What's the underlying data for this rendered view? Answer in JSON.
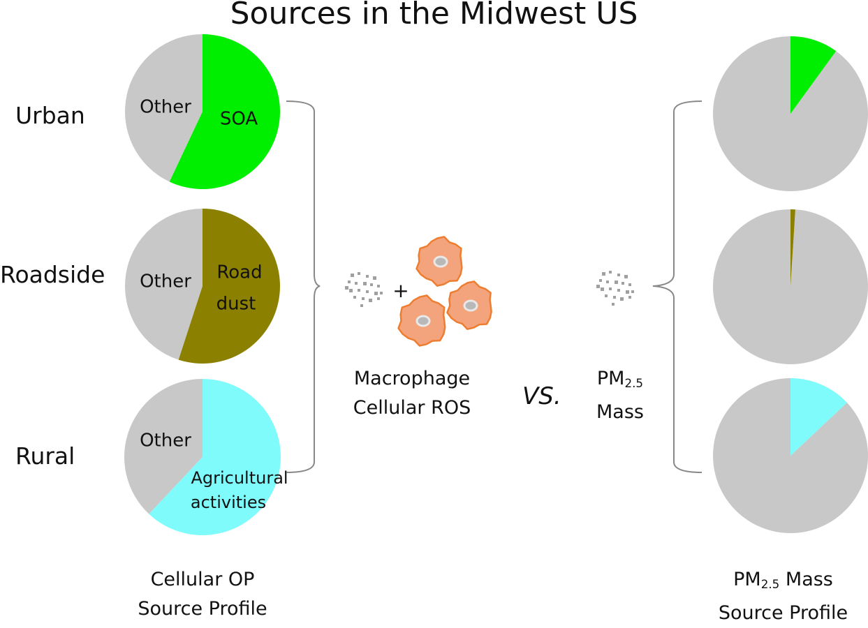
{
  "title": "Sources in the Midwest US",
  "rows": [
    {
      "label": "Urban"
    },
    {
      "label": "Roadside"
    },
    {
      "label": "Rural"
    }
  ],
  "cellular_op": {
    "caption_line1": "Cellular OP",
    "caption_line2": "Source Profile",
    "other_label": "Other",
    "source_labels": [
      [
        "SOA"
      ],
      [
        "Road",
        "dust"
      ],
      [
        "Agricultural",
        "activities"
      ]
    ]
  },
  "middle": {
    "macrophage_line1": "Macrophage",
    "macrophage_line2": "Cellular ROS",
    "plus": "+",
    "vs": "VS.",
    "pm_line1_main": "PM",
    "pm_line1_sub": "2.5",
    "pm_line2": "Mass"
  },
  "pm_mass": {
    "caption_line1_main": "PM",
    "caption_line1_sub": "2.5",
    "caption_line1_rest": " Mass",
    "caption_line2": "Source Profile"
  },
  "chart_data": [
    {
      "type": "pie",
      "title": "Cellular OP Source Profile",
      "series": [
        {
          "category": "Urban",
          "slices": [
            {
              "label": "SOA",
              "value": 0.57,
              "color": "#00ee00"
            },
            {
              "label": "Other",
              "value": 0.43,
              "color": "#c8c8c8"
            }
          ]
        },
        {
          "category": "Roadside",
          "slices": [
            {
              "label": "Road dust",
              "value": 0.55,
              "color": "#8b8000"
            },
            {
              "label": "Other",
              "value": 0.45,
              "color": "#c8c8c8"
            }
          ]
        },
        {
          "category": "Rural",
          "slices": [
            {
              "label": "Agricultural activities",
              "value": 0.62,
              "color": "#7ffbfb"
            },
            {
              "label": "Other",
              "value": 0.38,
              "color": "#c8c8c8"
            }
          ]
        }
      ]
    },
    {
      "type": "pie",
      "title": "PM2.5 Mass Source Profile",
      "series": [
        {
          "category": "Urban",
          "slices": [
            {
              "label": "SOA",
              "value": 0.1,
              "color": "#00ee00"
            },
            {
              "label": "Other",
              "value": 0.9,
              "color": "#c8c8c8"
            }
          ]
        },
        {
          "category": "Roadside",
          "slices": [
            {
              "label": "Road dust",
              "value": 0.01,
              "color": "#8b8000"
            },
            {
              "label": "Other",
              "value": 0.99,
              "color": "#c8c8c8"
            }
          ]
        },
        {
          "category": "Rural",
          "slices": [
            {
              "label": "Agricultural activities",
              "value": 0.13,
              "color": "#7ffbfb"
            },
            {
              "label": "Other",
              "value": 0.87,
              "color": "#c8c8c8"
            }
          ]
        }
      ]
    }
  ],
  "colors": {
    "other": "#c8c8c8",
    "cell_fill": "#f4a47c",
    "cell_stroke": "#ed7d31",
    "particle": "#a0a0a0",
    "bracket": "#888888"
  },
  "icons": {
    "cells": "macrophage-cell-icon",
    "particles": "particle-cluster-icon"
  }
}
